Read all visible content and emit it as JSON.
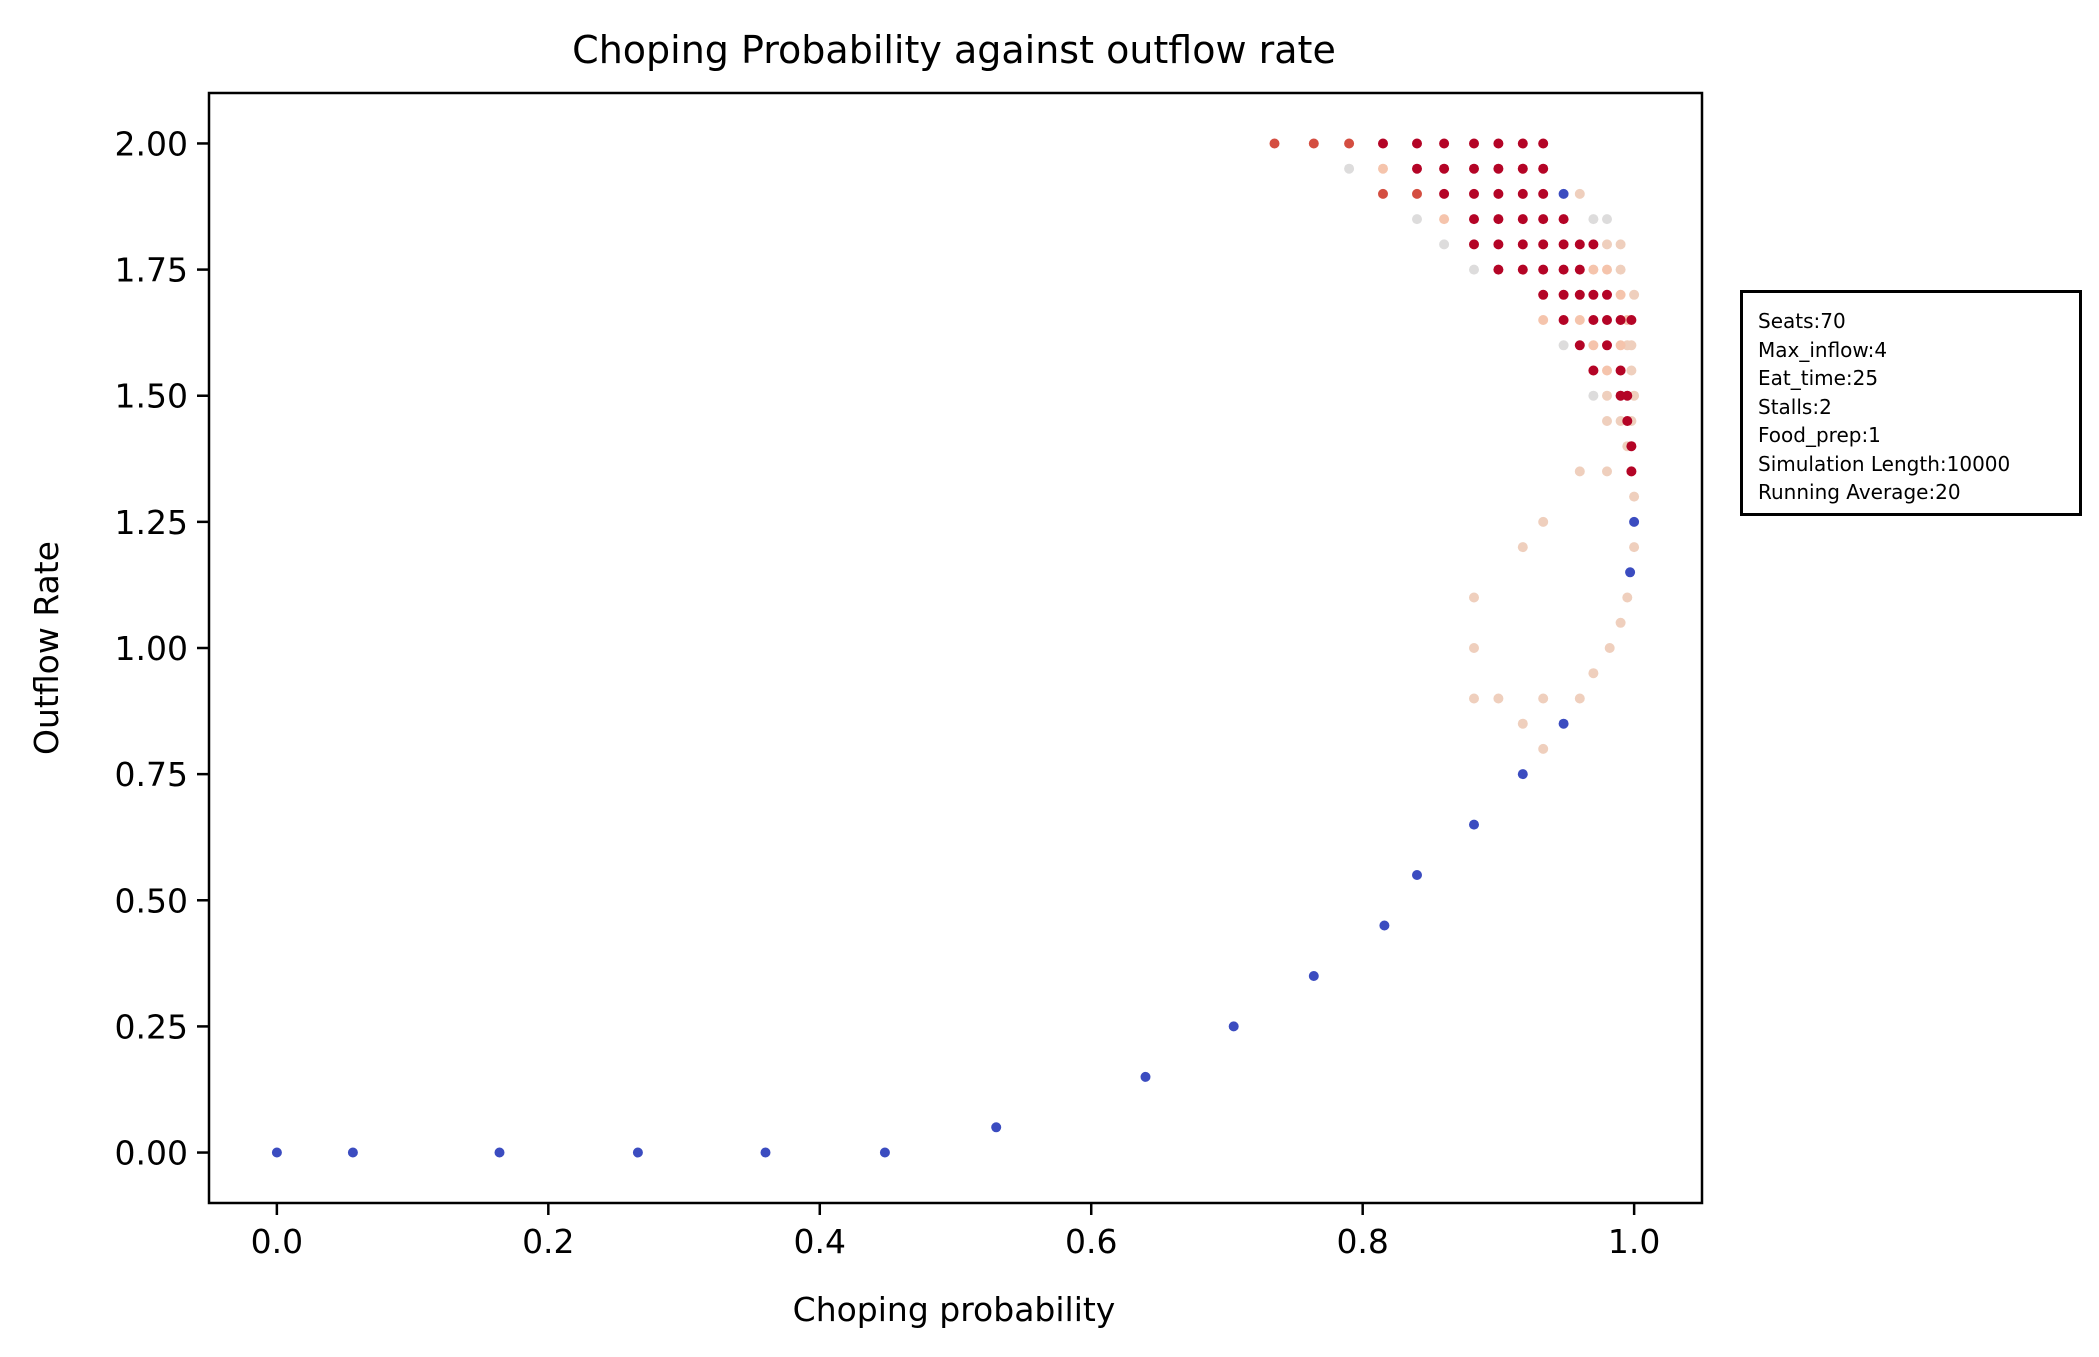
{
  "chart_data": {
    "type": "scatter",
    "title": "Choping Probability against outflow rate",
    "xlabel": "Choping probability",
    "ylabel": "Outflow Rate",
    "xlim": [
      -0.05,
      1.05
    ],
    "ylim": [
      -0.1,
      2.1
    ],
    "xticks": [
      "0.0",
      "0.2",
      "0.4",
      "0.6",
      "0.8",
      "1.0"
    ],
    "yticks": [
      "0.00",
      "0.25",
      "0.50",
      "0.75",
      "1.00",
      "1.25",
      "1.50",
      "1.75",
      "2.00"
    ],
    "grid": false,
    "colormap": "coolwarm",
    "colors": {
      "blue": "#3b4cc0",
      "grey": "#dddcdc",
      "peach": "#f5c4ac",
      "light_peach": "#efcfbd",
      "salmon": "#f1b79c",
      "red": "#c0282f",
      "dark_red": "#b40426",
      "coral": "#d44e41"
    },
    "annotation": [
      "Seats:70",
      "Max_inflow:4",
      "Eat_time:25",
      "Stalls:2",
      "Food_prep:1",
      "Simulation Length:10000",
      "Running Average:20"
    ],
    "annotation_position": "outside-right",
    "series": [
      {
        "color": "#3b4cc0",
        "points": [
          [
            0.0,
            0.0
          ],
          [
            0.056,
            0.0
          ],
          [
            0.164,
            0.0
          ],
          [
            0.266,
            0.0
          ],
          [
            0.36,
            0.0
          ],
          [
            0.448,
            0.0
          ],
          [
            0.53,
            0.05
          ],
          [
            0.64,
            0.15
          ],
          [
            0.705,
            0.25
          ],
          [
            0.764,
            0.35
          ],
          [
            0.816,
            0.45
          ],
          [
            0.84,
            0.55
          ],
          [
            0.882,
            0.65
          ],
          [
            0.918,
            0.75
          ],
          [
            0.948,
            0.85
          ],
          [
            0.997,
            1.15
          ],
          [
            1.0,
            1.25
          ],
          [
            0.948,
            1.9
          ]
        ]
      },
      {
        "color": "#dddcdc",
        "points": [
          [
            0.79,
            1.95
          ],
          [
            0.84,
            1.85
          ],
          [
            0.86,
            1.8
          ],
          [
            0.882,
            1.75
          ],
          [
            0.97,
            1.85
          ],
          [
            0.98,
            1.85
          ],
          [
            0.948,
            1.6
          ],
          [
            0.97,
            1.5
          ],
          [
            0.99,
            1.5
          ]
        ]
      },
      {
        "color": "#efcfbd",
        "points": [
          [
            0.882,
            1.1
          ],
          [
            0.882,
            1.0
          ],
          [
            0.882,
            0.9
          ],
          [
            0.9,
            0.9
          ],
          [
            0.918,
            1.2
          ],
          [
            0.918,
            0.85
          ],
          [
            0.933,
            1.25
          ],
          [
            0.933,
            0.9
          ],
          [
            0.933,
            0.8
          ],
          [
            0.96,
            1.35
          ],
          [
            0.96,
            0.9
          ],
          [
            0.97,
            0.95
          ],
          [
            0.98,
            1.35
          ],
          [
            0.982,
            1.0
          ],
          [
            0.99,
            1.05
          ],
          [
            0.995,
            1.1
          ],
          [
            1.0,
            1.2
          ],
          [
            1.0,
            1.3
          ],
          [
            0.998,
            1.35
          ],
          [
            0.96,
            1.9
          ],
          [
            0.98,
            1.8
          ],
          [
            0.99,
            1.8
          ],
          [
            0.99,
            1.75
          ],
          [
            1.0,
            1.7
          ],
          [
            0.995,
            1.6
          ],
          [
            0.998,
            1.6
          ],
          [
            0.99,
            1.55
          ],
          [
            0.998,
            1.55
          ],
          [
            0.98,
            1.5
          ],
          [
            1.0,
            1.5
          ],
          [
            0.98,
            1.45
          ],
          [
            0.99,
            1.45
          ],
          [
            0.995,
            1.4
          ],
          [
            0.998,
            1.45
          ]
        ]
      },
      {
        "color": "#f5c4ac",
        "points": [
          [
            0.815,
            1.95
          ],
          [
            0.86,
            1.85
          ],
          [
            0.918,
            1.95
          ],
          [
            0.933,
            1.65
          ],
          [
            0.96,
            1.65
          ],
          [
            0.97,
            1.75
          ],
          [
            0.97,
            1.6
          ],
          [
            0.98,
            1.55
          ],
          [
            0.97,
            1.55
          ],
          [
            0.99,
            1.6
          ],
          [
            0.995,
            1.65
          ],
          [
            0.99,
            1.7
          ],
          [
            0.98,
            1.75
          ]
        ]
      },
      {
        "color": "#d44e41",
        "points": [
          [
            0.735,
            2.0
          ],
          [
            0.764,
            2.0
          ],
          [
            0.79,
            2.0
          ],
          [
            0.84,
            1.9
          ],
          [
            0.815,
            1.9
          ]
        ]
      },
      {
        "color": "#b40426",
        "points": [
          [
            0.815,
            2.0
          ],
          [
            0.84,
            2.0
          ],
          [
            0.86,
            2.0
          ],
          [
            0.882,
            2.0
          ],
          [
            0.9,
            2.0
          ],
          [
            0.918,
            2.0
          ],
          [
            0.933,
            2.0
          ],
          [
            0.84,
            1.95
          ],
          [
            0.86,
            1.95
          ],
          [
            0.882,
            1.95
          ],
          [
            0.9,
            1.95
          ],
          [
            0.86,
            1.9
          ],
          [
            0.882,
            1.9
          ],
          [
            0.9,
            1.9
          ],
          [
            0.918,
            1.9
          ],
          [
            0.933,
            1.9
          ],
          [
            0.882,
            1.85
          ],
          [
            0.9,
            1.85
          ],
          [
            0.918,
            1.85
          ],
          [
            0.933,
            1.85
          ],
          [
            0.948,
            1.85
          ],
          [
            0.882,
            1.8
          ],
          [
            0.9,
            1.8
          ],
          [
            0.918,
            1.8
          ],
          [
            0.933,
            1.8
          ],
          [
            0.948,
            1.8
          ],
          [
            0.96,
            1.8
          ],
          [
            0.97,
            1.8
          ],
          [
            0.9,
            1.75
          ],
          [
            0.918,
            1.75
          ],
          [
            0.933,
            1.75
          ],
          [
            0.948,
            1.75
          ],
          [
            0.96,
            1.75
          ],
          [
            0.933,
            1.7
          ],
          [
            0.948,
            1.7
          ],
          [
            0.96,
            1.7
          ],
          [
            0.97,
            1.7
          ],
          [
            0.98,
            1.7
          ],
          [
            0.948,
            1.65
          ],
          [
            0.97,
            1.65
          ],
          [
            0.98,
            1.65
          ],
          [
            0.99,
            1.65
          ],
          [
            0.998,
            1.65
          ],
          [
            0.96,
            1.6
          ],
          [
            0.98,
            1.6
          ],
          [
            0.97,
            1.55
          ],
          [
            0.99,
            1.55
          ],
          [
            0.995,
            1.5
          ],
          [
            0.99,
            1.5
          ],
          [
            0.995,
            1.45
          ],
          [
            0.998,
            1.4
          ],
          [
            0.998,
            1.35
          ],
          [
            0.933,
            1.95
          ],
          [
            0.918,
            1.95
          ]
        ]
      }
    ]
  }
}
